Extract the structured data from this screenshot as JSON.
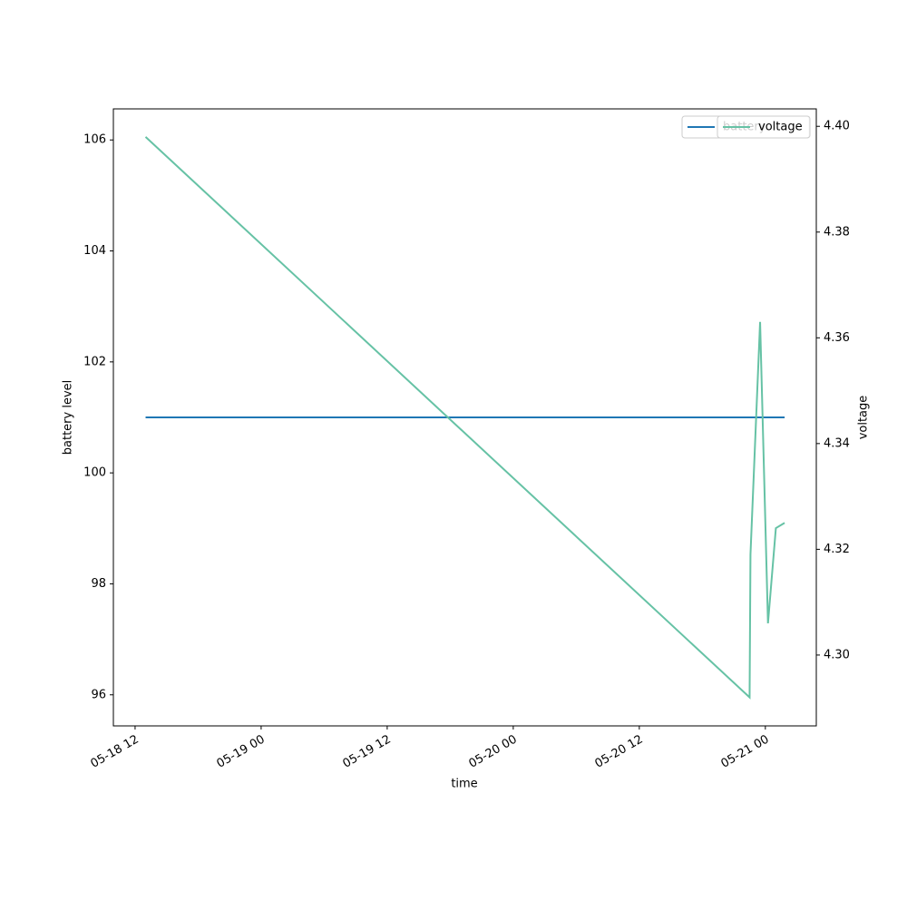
{
  "chart_data": {
    "type": "line",
    "x_label": "time",
    "y_label": "battery level",
    "y2_label": "voltage",
    "x": [
      "05-18 13:00",
      "05-20 22:30",
      "05-20 22:35",
      "05-20 23:30",
      "05-21 00:15",
      "05-21 01:00",
      "05-21 01:50"
    ],
    "series": [
      {
        "name": "battery",
        "color": "#1f77b4",
        "values": [
          101,
          101,
          101,
          101,
          101,
          101,
          101
        ]
      },
      {
        "name": "voltage",
        "color": "#66c2a5",
        "axis": "y2",
        "values": [
          4.398,
          4.292,
          4.319,
          4.363,
          4.306,
          4.324,
          4.325
        ]
      }
    ],
    "xlim": [
      "05-18 09:56",
      "05-21 04:51"
    ],
    "xticks": [
      {
        "value": "05-18 12:00",
        "label": "05-18 12"
      },
      {
        "value": "05-19 00:00",
        "label": "05-19 00"
      },
      {
        "value": "05-19 12:00",
        "label": "05-19 12"
      },
      {
        "value": "05-20 00:00",
        "label": "05-20 00"
      },
      {
        "value": "05-20 12:00",
        "label": "05-20 12"
      },
      {
        "value": "05-21 00:00",
        "label": "05-21 00"
      }
    ],
    "ylim": [
      95.44,
      106.56
    ],
    "yticks": [
      96,
      98,
      100,
      102,
      104,
      106
    ],
    "y2lim": [
      4.2866,
      4.4033
    ],
    "y2ticks": [
      {
        "value": 4.3,
        "label": "4.30"
      },
      4.32,
      4.34,
      4.36,
      4.38,
      {
        "value": 4.4,
        "label": "4.40"
      }
    ],
    "legend": "upper right"
  }
}
